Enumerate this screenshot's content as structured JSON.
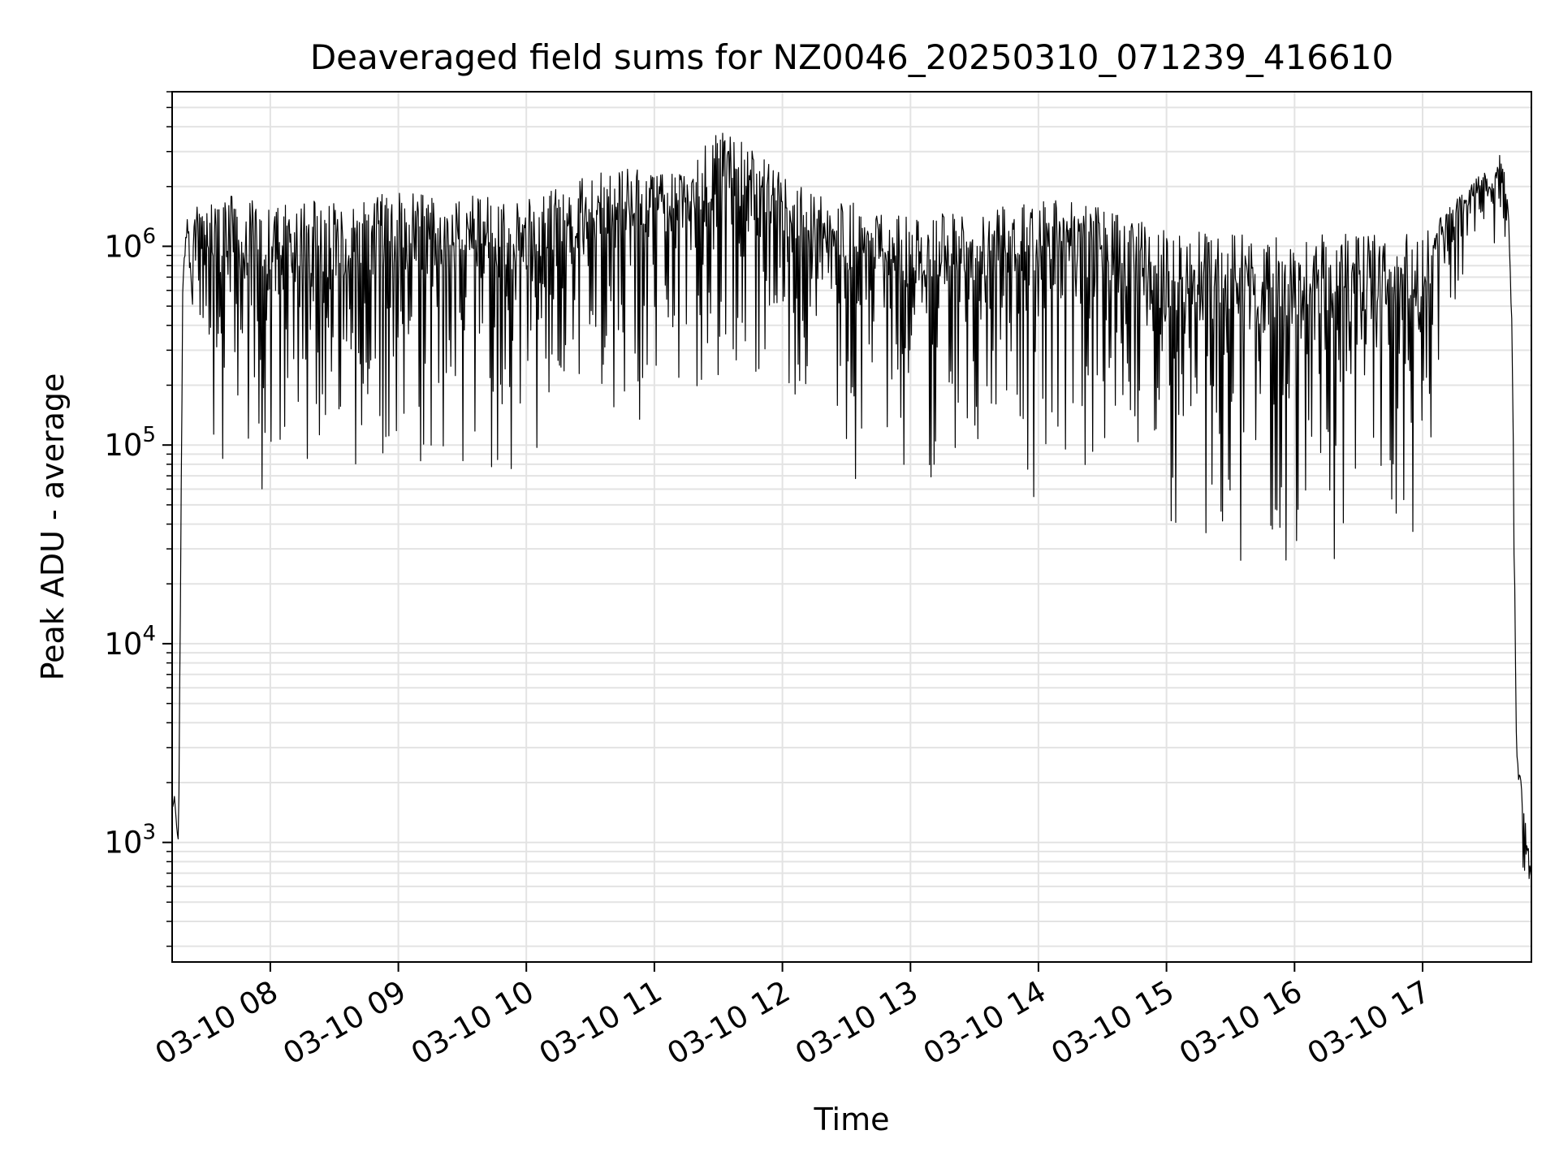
{
  "chart_data": {
    "type": "line",
    "title": "Deaveraged field sums for NZ0046_20250310_071239_416610",
    "xlabel": "Time",
    "ylabel": "Peak ADU - average",
    "yscale": "log",
    "grid": true,
    "xlim": [
      "2025-03-10 07:14",
      "2025-03-10 17:51"
    ],
    "ylim": [
      250,
      6000000
    ],
    "x_ticks": [
      {
        "value": "2025-03-10 08:00",
        "label": "03-10 08"
      },
      {
        "value": "2025-03-10 09:00",
        "label": "03-10 09"
      },
      {
        "value": "2025-03-10 10:00",
        "label": "03-10 10"
      },
      {
        "value": "2025-03-10 11:00",
        "label": "03-10 11"
      },
      {
        "value": "2025-03-10 12:00",
        "label": "03-10 12"
      },
      {
        "value": "2025-03-10 13:00",
        "label": "03-10 13"
      },
      {
        "value": "2025-03-10 14:00",
        "label": "03-10 14"
      },
      {
        "value": "2025-03-10 15:00",
        "label": "03-10 15"
      },
      {
        "value": "2025-03-10 16:00",
        "label": "03-10 16"
      },
      {
        "value": "2025-03-10 17:00",
        "label": "03-10 17"
      }
    ],
    "y_ticks": [
      {
        "value": 1000,
        "base": "10",
        "exp": "3"
      },
      {
        "value": 10000,
        "base": "10",
        "exp": "4"
      },
      {
        "value": 100000,
        "base": "10",
        "exp": "5"
      },
      {
        "value": 1000000,
        "base": "10",
        "exp": "6"
      }
    ],
    "line_color": "#000000",
    "series": [
      {
        "x": [
          "2025-03-10 07:14",
          "2025-03-10 07:15",
          "2025-03-10 07:16",
          "2025-03-10 07:17",
          "2025-03-10 07:18",
          "2025-03-10 07:19",
          "2025-03-10 07:21",
          "2025-03-10 07:22",
          "2025-03-10 07:23",
          "2025-03-10 07:25",
          "2025-03-10 07:27",
          "2025-03-10 07:29",
          "2025-03-10 07:31",
          "2025-03-10 07:33",
          "2025-03-10 07:36",
          "2025-03-10 07:39",
          "2025-03-10 07:42",
          "2025-03-10 07:45",
          "2025-03-10 07:48",
          "2025-03-10 07:52",
          "2025-03-10 07:56",
          "2025-03-10 08:00",
          "2025-03-10 08:15",
          "2025-03-10 08:30",
          "2025-03-10 08:45",
          "2025-03-10 09:00",
          "2025-03-10 09:15",
          "2025-03-10 09:30",
          "2025-03-10 09:45",
          "2025-03-10 10:00",
          "2025-03-10 10:15",
          "2025-03-10 10:30",
          "2025-03-10 10:45",
          "2025-03-10 11:00",
          "2025-03-10 11:15",
          "2025-03-10 11:30",
          "2025-03-10 11:45",
          "2025-03-10 12:00",
          "2025-03-10 12:15",
          "2025-03-10 12:30",
          "2025-03-10 12:45",
          "2025-03-10 13:00",
          "2025-03-10 13:15",
          "2025-03-10 13:30",
          "2025-03-10 13:45",
          "2025-03-10 14:00",
          "2025-03-10 14:15",
          "2025-03-10 14:30",
          "2025-03-10 14:45",
          "2025-03-10 15:00",
          "2025-03-10 15:15",
          "2025-03-10 15:30",
          "2025-03-10 15:45",
          "2025-03-10 16:00",
          "2025-03-10 16:15",
          "2025-03-10 16:30",
          "2025-03-10 16:45",
          "2025-03-10 17:00",
          "2025-03-10 17:10",
          "2025-03-10 17:20",
          "2025-03-10 17:25",
          "2025-03-10 17:28",
          "2025-03-10 17:31",
          "2025-03-10 17:34",
          "2025-03-10 17:37",
          "2025-03-10 17:40",
          "2025-03-10 17:42",
          "2025-03-10 17:44",
          "2025-03-10 17:46",
          "2025-03-10 17:48",
          "2025-03-10 17:50",
          "2025-03-10 17:51"
        ],
        "high": [
          1500,
          1800,
          1300,
          1000,
          30000,
          700000,
          1400000,
          1200000,
          900000,
          1600000,
          1700000,
          1700000,
          1800000,
          1800000,
          1800000,
          1800000,
          1800000,
          1800000,
          1700000,
          1700000,
          1800000,
          1700000,
          1800000,
          1700000,
          1800000,
          1900000,
          1800000,
          1800000,
          1800000,
          1800000,
          2000000,
          2300000,
          2500000,
          2400000,
          2500000,
          3800000,
          3200000,
          2300000,
          1800000,
          1700000,
          1500000,
          1400000,
          1500000,
          1500000,
          1700000,
          1700000,
          1700000,
          1600000,
          1400000,
          1200000,
          1200000,
          1150000,
          1150000,
          1150000,
          1150000,
          1150000,
          1150000,
          1200000,
          1500000,
          1900000,
          2200000,
          2700000,
          2000000,
          2400000,
          3100000,
          1800000,
          400000,
          3000,
          2200,
          1400,
          900,
          700
        ],
        "low": [
          1200,
          1300,
          1000,
          900,
          20000,
          600000,
          1100000,
          900000,
          100000,
          500000,
          300000,
          150000,
          60000,
          45000,
          45000,
          45000,
          40000,
          45000,
          45000,
          45000,
          45000,
          45000,
          45000,
          45000,
          45000,
          45000,
          40000,
          40000,
          45000,
          50000,
          90000,
          100000,
          100000,
          120000,
          150000,
          150000,
          120000,
          150000,
          80000,
          60000,
          55000,
          50000,
          55000,
          55000,
          55000,
          50000,
          45000,
          45000,
          40000,
          20000,
          18000,
          17000,
          16000,
          18000,
          18000,
          20000,
          20000,
          25000,
          300000,
          600000,
          800000,
          1000000,
          900000,
          1000000,
          1100000,
          1000000,
          200000,
          2000,
          900,
          550,
          500,
          450
        ]
      }
    ]
  }
}
